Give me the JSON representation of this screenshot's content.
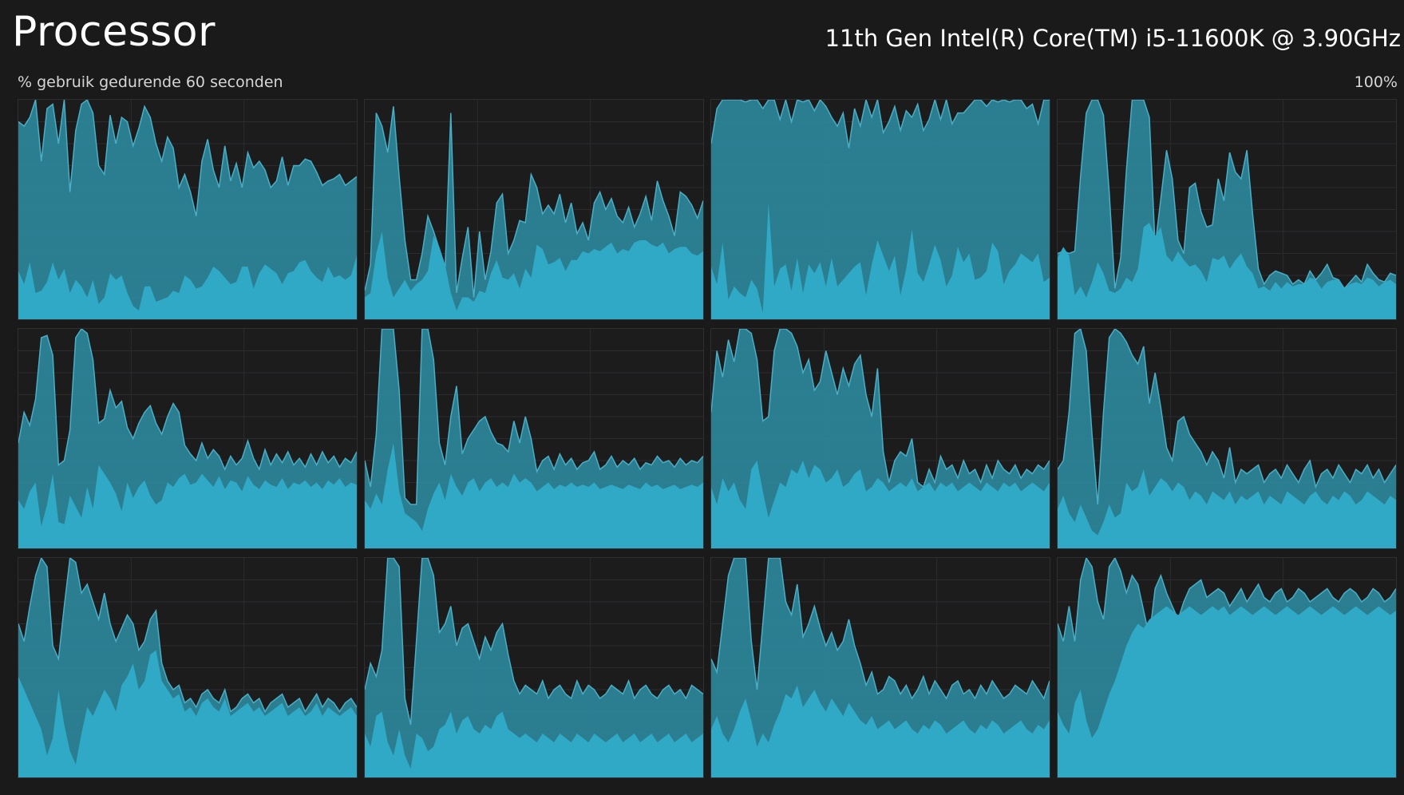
{
  "header": {
    "title": "Processor",
    "cpu_name": "11th Gen Intel(R) Core(TM) i5-11600K @ 3.90GHz",
    "usage_label": "% gebruik gedurende 60 seconden",
    "max_label": "100%"
  },
  "colors": {
    "background": "#1a1a1b",
    "grid_line": "#2c2c2e",
    "total_fill": "#2e8ea5",
    "total_line": "#4aaec6",
    "kernel_fill": "#30a9c6"
  },
  "chart_data": [
    {
      "type": "area",
      "core": 1,
      "ylim": [
        0,
        100
      ],
      "total": [
        90,
        88,
        92,
        100,
        72,
        96,
        98,
        80,
        100,
        58,
        86,
        98,
        100,
        94,
        70,
        66,
        93,
        80,
        92,
        90,
        79,
        87,
        97,
        92,
        80,
        72,
        83,
        78,
        60,
        66,
        58,
        47,
        72,
        82,
        68,
        60,
        79,
        63,
        71,
        60,
        76,
        69,
        72,
        68,
        60,
        63,
        74,
        61,
        70,
        70,
        73,
        72,
        67,
        61,
        63,
        64,
        66,
        61,
        63,
        65
      ],
      "kernel": [
        22,
        16,
        26,
        12,
        13,
        17,
        26,
        18,
        23,
        12,
        18,
        15,
        10,
        18,
        7,
        10,
        21,
        18,
        20,
        12,
        6,
        4,
        15,
        15,
        8,
        9,
        10,
        13,
        12,
        20,
        18,
        14,
        15,
        19,
        24,
        22,
        19,
        16,
        17,
        24,
        24,
        14,
        21,
        25,
        23,
        21,
        16,
        21,
        22,
        26,
        27,
        22,
        19,
        17,
        24,
        19,
        20,
        18,
        20,
        29
      ]
    },
    {
      "type": "area",
      "core": 2,
      "ylim": [
        0,
        100
      ],
      "total": [
        13,
        25,
        94,
        88,
        76,
        97,
        65,
        36,
        18,
        18,
        30,
        47,
        40,
        32,
        22,
        94,
        12,
        28,
        42,
        10,
        40,
        18,
        31,
        53,
        57,
        30,
        36,
        45,
        44,
        66,
        60,
        48,
        52,
        48,
        57,
        44,
        53,
        39,
        44,
        36,
        53,
        58,
        50,
        55,
        47,
        44,
        51,
        42,
        48,
        56,
        45,
        63,
        54,
        47,
        38,
        58,
        56,
        52,
        46,
        54
      ],
      "kernel": [
        10,
        12,
        30,
        40,
        19,
        10,
        14,
        18,
        13,
        16,
        18,
        22,
        38,
        33,
        25,
        12,
        4,
        10,
        10,
        8,
        13,
        12,
        21,
        27,
        19,
        18,
        21,
        14,
        23,
        19,
        34,
        32,
        25,
        26,
        28,
        22,
        27,
        27,
        31,
        30,
        32,
        31,
        33,
        35,
        30,
        32,
        31,
        35,
        36,
        36,
        34,
        33,
        35,
        30,
        32,
        33,
        33,
        30,
        29,
        31
      ]
    },
    {
      "type": "area",
      "core": 3,
      "ylim": [
        0,
        100
      ],
      "total": [
        80,
        96,
        100,
        100,
        100,
        100,
        99,
        100,
        100,
        96,
        100,
        100,
        91,
        100,
        90,
        100,
        99,
        100,
        95,
        100,
        97,
        92,
        88,
        94,
        78,
        96,
        88,
        100,
        92,
        100,
        85,
        90,
        97,
        86,
        95,
        92,
        98,
        86,
        91,
        100,
        91,
        100,
        89,
        94,
        94,
        97,
        100,
        100,
        97,
        100,
        99,
        100,
        99,
        100,
        100,
        96,
        98,
        89,
        100,
        100
      ],
      "kernel": [
        24,
        16,
        35,
        9,
        15,
        12,
        10,
        18,
        14,
        3,
        53,
        15,
        23,
        25,
        13,
        28,
        12,
        25,
        21,
        26,
        15,
        28,
        15,
        18,
        21,
        24,
        26,
        11,
        25,
        36,
        29,
        22,
        29,
        11,
        23,
        41,
        21,
        17,
        25,
        34,
        27,
        15,
        20,
        33,
        26,
        30,
        18,
        19,
        22,
        35,
        31,
        16,
        22,
        25,
        30,
        28,
        26,
        30,
        17,
        19
      ]
    },
    {
      "type": "area",
      "core": 4,
      "ylim": [
        0,
        100
      ],
      "total": [
        30,
        31,
        30,
        31,
        65,
        94,
        100,
        100,
        93,
        58,
        14,
        28,
        68,
        100,
        100,
        100,
        92,
        33,
        55,
        77,
        64,
        36,
        30,
        60,
        62,
        49,
        42,
        43,
        64,
        54,
        76,
        67,
        64,
        77,
        48,
        23,
        16,
        20,
        22,
        21,
        20,
        16,
        18,
        16,
        22,
        18,
        21,
        25,
        19,
        18,
        14,
        17,
        20,
        17,
        25,
        21,
        18,
        17,
        21,
        20
      ],
      "kernel": [
        28,
        33,
        29,
        11,
        15,
        10,
        17,
        26,
        21,
        13,
        12,
        14,
        19,
        17,
        23,
        42,
        44,
        38,
        42,
        29,
        26,
        31,
        27,
        24,
        25,
        22,
        17,
        28,
        27,
        29,
        23,
        27,
        30,
        24,
        21,
        14,
        15,
        13,
        17,
        14,
        17,
        15,
        16,
        16,
        19,
        18,
        14,
        17,
        18,
        18,
        14,
        16,
        17,
        16,
        19,
        18,
        15,
        17,
        18,
        16
      ],
      "note": ""
    },
    {
      "type": "area",
      "core": 5,
      "ylim": [
        0,
        100
      ],
      "total": [
        48,
        62,
        56,
        68,
        96,
        97,
        88,
        38,
        40,
        54,
        96,
        100,
        98,
        86,
        57,
        59,
        72,
        64,
        67,
        55,
        50,
        57,
        62,
        65,
        57,
        52,
        60,
        66,
        62,
        47,
        43,
        40,
        48,
        41,
        45,
        42,
        36,
        42,
        38,
        41,
        49,
        41,
        36,
        45,
        38,
        43,
        39,
        44,
        38,
        41,
        37,
        43,
        38,
        44,
        39,
        42,
        37,
        41,
        39,
        44
      ],
      "kernel": [
        22,
        18,
        26,
        30,
        10,
        20,
        34,
        12,
        11,
        24,
        19,
        14,
        28,
        18,
        38,
        34,
        30,
        25,
        17,
        30,
        23,
        28,
        31,
        24,
        20,
        22,
        30,
        28,
        32,
        34,
        29,
        30,
        34,
        31,
        28,
        33,
        27,
        31,
        30,
        26,
        33,
        29,
        27,
        31,
        29,
        28,
        32,
        27,
        30,
        29,
        31,
        28,
        30,
        27,
        31,
        29,
        32,
        28,
        30,
        29
      ],
      "hide": true
    }
  ]
}
